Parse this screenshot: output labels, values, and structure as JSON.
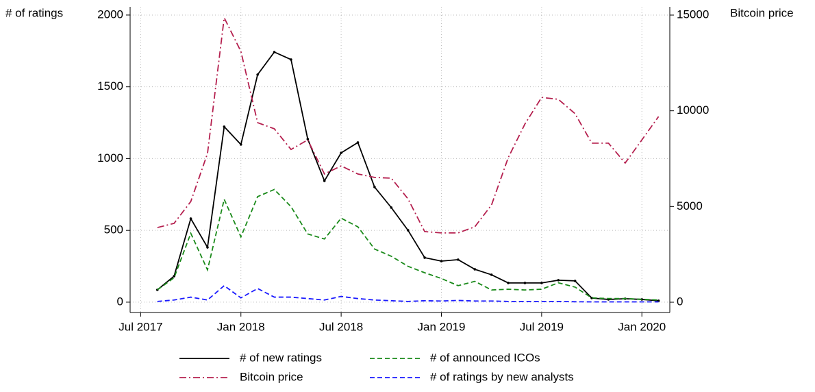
{
  "chart_data": {
    "type": "line",
    "y_label": "# of ratings",
    "y2_label": "Bitcoin price",
    "x": [
      "2017-08",
      "2017-09",
      "2017-10",
      "2017-11",
      "2017-12",
      "2018-01",
      "2018-02",
      "2018-03",
      "2018-04",
      "2018-05",
      "2018-06",
      "2018-07",
      "2018-08",
      "2018-09",
      "2018-10",
      "2018-11",
      "2018-12",
      "2019-01",
      "2019-02",
      "2019-03",
      "2019-04",
      "2019-05",
      "2019-06",
      "2019-07",
      "2019-08",
      "2019-09",
      "2019-10",
      "2019-11",
      "2019-12",
      "2020-01",
      "2020-02"
    ],
    "series": [
      {
        "name": "# of new ratings",
        "color": "#000000",
        "style": "solid",
        "markers": true,
        "values": [
          86,
          181,
          582,
          382,
          1222,
          1098,
          1585,
          1742,
          1690,
          1136,
          845,
          1040,
          1112,
          802,
          659,
          501,
          310,
          286,
          296,
          229,
          191,
          134,
          134,
          134,
          153,
          148,
          29,
          19,
          24,
          19,
          10
        ]
      },
      {
        "name": "# of announced ICOs",
        "color": "#1a8a1a",
        "style": "dash",
        "values": [
          86,
          170,
          480,
          225,
          716,
          455,
          735,
          785,
          665,
          475,
          440,
          585,
          525,
          370,
          320,
          250,
          205,
          165,
          115,
          145,
          85,
          90,
          85,
          90,
          135,
          105,
          30,
          25,
          25,
          20,
          15
        ]
      },
      {
        "name": "Bitcoin price",
        "color": "#b5204f",
        "style": "dashdot",
        "axis": "y2",
        "values": [
          3900,
          4120,
          5260,
          7770,
          14860,
          13100,
          9380,
          9060,
          7980,
          8480,
          6700,
          7120,
          6700,
          6520,
          6480,
          5400,
          3690,
          3620,
          3620,
          3940,
          5080,
          7550,
          9310,
          10700,
          10600,
          9850,
          8310,
          8310,
          7270,
          8480,
          9700
        ]
      },
      {
        "name": "# of ratings by new analysts",
        "color": "#1a1aff",
        "style": "dash",
        "values": [
          5,
          15,
          35,
          15,
          115,
          30,
          95,
          35,
          35,
          25,
          15,
          40,
          25,
          15,
          10,
          5,
          10,
          8,
          12,
          8,
          8,
          5,
          5,
          5,
          5,
          3,
          2,
          2,
          2,
          2,
          2
        ]
      }
    ],
    "xlim": [
      "2017-06",
      "2020-03"
    ],
    "xticks": [
      {
        "value": "2017-07",
        "label": "Jul 2017"
      },
      {
        "value": "2018-01",
        "label": "Jan 2018"
      },
      {
        "value": "2018-07",
        "label": "Jul 2018"
      },
      {
        "value": "2019-01",
        "label": "Jan 2019"
      },
      {
        "value": "2019-07",
        "label": "Jul 2019"
      },
      {
        "value": "2020-01",
        "label": "Jan 2020"
      }
    ],
    "ylim": [
      -72,
      2057
    ],
    "yticks": [
      0,
      500,
      1000,
      1500,
      2000
    ],
    "y2lim": [
      -537,
      15430
    ],
    "y2ticks": [
      0,
      5000,
      10000,
      15000
    ],
    "grid": true,
    "legend": "bottom"
  }
}
